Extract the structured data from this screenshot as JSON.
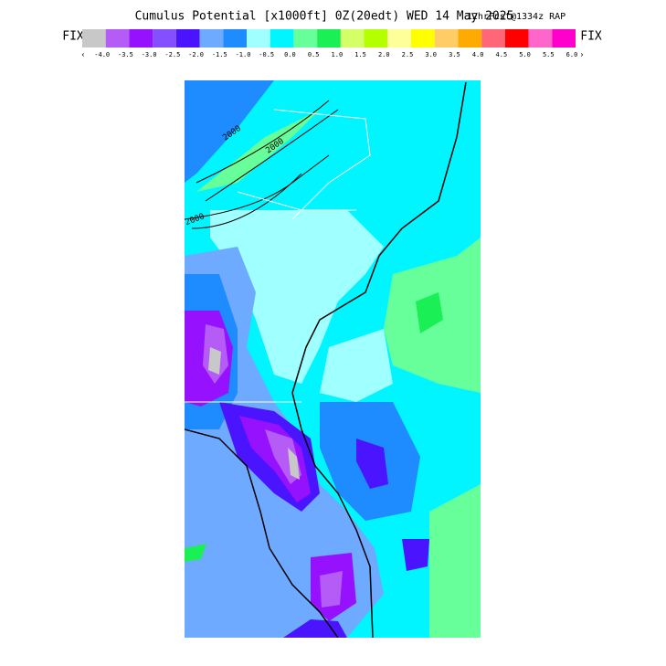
{
  "header": {
    "title": "Cumulus Potential [x1000ft] 0Z(20edt) WED 14 May 2025",
    "subtitle": "12hrFcst@1334z RAP"
  },
  "colorbar": {
    "left_label": "FIX",
    "right_label": "FIX",
    "left_arrow": "‹",
    "right_arrow": "›",
    "bins": [
      {
        "color": "#c8c8c8",
        "label": "-4.0"
      },
      {
        "color": "#b45cf5",
        "label": "-3.5"
      },
      {
        "color": "#9612ff",
        "label": "-3.0"
      },
      {
        "color": "#8450ff",
        "label": "-2.5"
      },
      {
        "color": "#4a14ff",
        "label": "-2.0"
      },
      {
        "color": "#6eaaff",
        "label": "-1.5"
      },
      {
        "color": "#1e8cff",
        "label": "-1.0"
      },
      {
        "color": "#a0ffff",
        "label": "-0.5"
      },
      {
        "color": "#00f5ff",
        "label": "0.0"
      },
      {
        "color": "#66ff99",
        "label": "0.5"
      },
      {
        "color": "#1aef55",
        "label": "1.0"
      },
      {
        "color": "#d4ff66",
        "label": "1.5"
      },
      {
        "color": "#b4ff00",
        "label": "2.0"
      },
      {
        "color": "#ffff99",
        "label": "2.5"
      },
      {
        "color": "#ffff00",
        "label": "3.0"
      },
      {
        "color": "#ffcc66",
        "label": "3.5"
      },
      {
        "color": "#ffaa00",
        "label": "4.0"
      },
      {
        "color": "#ff6677",
        "label": "4.5"
      },
      {
        "color": "#ff0000",
        "label": "5.0"
      },
      {
        "color": "#ff66cc",
        "label": "5.5"
      },
      {
        "color": "#ff00cc",
        "label": "6.0"
      }
    ]
  },
  "map": {
    "contour_labels": [
      "2000",
      "2000",
      "2000"
    ]
  }
}
